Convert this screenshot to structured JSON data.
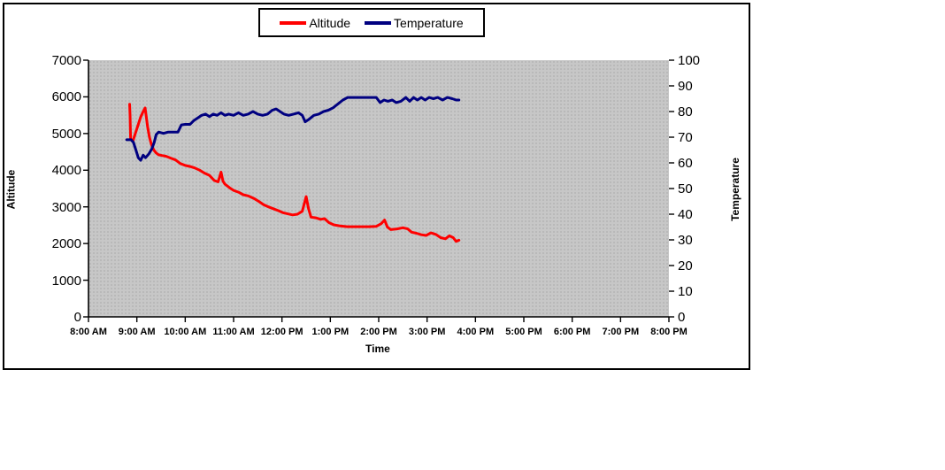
{
  "chart_data": {
    "type": "line",
    "title": "",
    "xlabel": "Time",
    "ylabel_left": "Altitude",
    "ylabel_right": "Temperature",
    "x_ticks": [
      "8:00 AM",
      "9:00 AM",
      "10:00 AM",
      "11:00 AM",
      "12:00 PM",
      "1:00 PM",
      "2:00 PM",
      "3:00 PM",
      "4:00 PM",
      "5:00 PM",
      "6:00 PM",
      "7:00 PM",
      "8:00 PM"
    ],
    "x_range_hours": [
      8,
      20
    ],
    "y_left_ticks": [
      0,
      1000,
      2000,
      3000,
      4000,
      5000,
      6000,
      7000
    ],
    "y_left_range": [
      0,
      7000
    ],
    "y_right_ticks": [
      0,
      10,
      20,
      30,
      40,
      50,
      60,
      70,
      80,
      90,
      100
    ],
    "y_right_range": [
      0,
      100
    ],
    "grid": false,
    "plot_background": "#C7C7C7",
    "axis_color": "#000000",
    "legend": {
      "position": "top-center",
      "entries": [
        {
          "label": "Altitude",
          "color": "#FF0000"
        },
        {
          "label": "Temperature",
          "color": "#000080"
        }
      ]
    },
    "series": [
      {
        "name": "Altitude",
        "axis": "left",
        "color": "#FF0000",
        "points": [
          [
            8.85,
            5800
          ],
          [
            8.86,
            5500
          ],
          [
            8.87,
            4850
          ],
          [
            8.92,
            4800
          ],
          [
            8.98,
            5050
          ],
          [
            9.03,
            5250
          ],
          [
            9.08,
            5450
          ],
          [
            9.13,
            5600
          ],
          [
            9.17,
            5700
          ],
          [
            9.19,
            5500
          ],
          [
            9.22,
            5200
          ],
          [
            9.26,
            4900
          ],
          [
            9.3,
            4700
          ],
          [
            9.35,
            4550
          ],
          [
            9.4,
            4470
          ],
          [
            9.45,
            4420
          ],
          [
            9.52,
            4400
          ],
          [
            9.6,
            4380
          ],
          [
            9.7,
            4330
          ],
          [
            9.8,
            4280
          ],
          [
            9.9,
            4180
          ],
          [
            10.0,
            4130
          ],
          [
            10.1,
            4100
          ],
          [
            10.2,
            4060
          ],
          [
            10.3,
            4000
          ],
          [
            10.4,
            3920
          ],
          [
            10.5,
            3860
          ],
          [
            10.6,
            3720
          ],
          [
            10.68,
            3680
          ],
          [
            10.74,
            3950
          ],
          [
            10.78,
            3700
          ],
          [
            10.82,
            3620
          ],
          [
            10.92,
            3520
          ],
          [
            11.0,
            3450
          ],
          [
            11.1,
            3400
          ],
          [
            11.2,
            3330
          ],
          [
            11.3,
            3300
          ],
          [
            11.42,
            3230
          ],
          [
            11.52,
            3150
          ],
          [
            11.62,
            3060
          ],
          [
            11.72,
            3000
          ],
          [
            11.82,
            2950
          ],
          [
            11.92,
            2900
          ],
          [
            12.02,
            2840
          ],
          [
            12.12,
            2810
          ],
          [
            12.22,
            2780
          ],
          [
            12.32,
            2800
          ],
          [
            12.42,
            2880
          ],
          [
            12.5,
            3280
          ],
          [
            12.55,
            2950
          ],
          [
            12.6,
            2720
          ],
          [
            12.7,
            2700
          ],
          [
            12.8,
            2660
          ],
          [
            12.88,
            2680
          ],
          [
            12.97,
            2570
          ],
          [
            13.07,
            2510
          ],
          [
            13.2,
            2480
          ],
          [
            13.35,
            2460
          ],
          [
            13.5,
            2460
          ],
          [
            13.65,
            2460
          ],
          [
            13.8,
            2460
          ],
          [
            13.95,
            2470
          ],
          [
            14.05,
            2540
          ],
          [
            14.12,
            2640
          ],
          [
            14.18,
            2450
          ],
          [
            14.25,
            2380
          ],
          [
            14.38,
            2400
          ],
          [
            14.5,
            2430
          ],
          [
            14.6,
            2400
          ],
          [
            14.68,
            2310
          ],
          [
            14.78,
            2280
          ],
          [
            14.88,
            2240
          ],
          [
            14.98,
            2220
          ],
          [
            15.08,
            2290
          ],
          [
            15.18,
            2250
          ],
          [
            15.28,
            2160
          ],
          [
            15.38,
            2130
          ],
          [
            15.46,
            2210
          ],
          [
            15.54,
            2160
          ],
          [
            15.6,
            2060
          ],
          [
            15.66,
            2090
          ]
        ]
      },
      {
        "name": "Temperature",
        "axis": "right",
        "color": "#000080",
        "points": [
          [
            8.79,
            69
          ],
          [
            8.88,
            69
          ],
          [
            8.93,
            68
          ],
          [
            8.98,
            65
          ],
          [
            9.03,
            62
          ],
          [
            9.08,
            61
          ],
          [
            9.13,
            63
          ],
          [
            9.18,
            62
          ],
          [
            9.25,
            63.5
          ],
          [
            9.31,
            65.5
          ],
          [
            9.36,
            68
          ],
          [
            9.4,
            71
          ],
          [
            9.45,
            72
          ],
          [
            9.55,
            71.5
          ],
          [
            9.65,
            72
          ],
          [
            9.75,
            72
          ],
          [
            9.85,
            72
          ],
          [
            9.92,
            74.8
          ],
          [
            10.0,
            75
          ],
          [
            10.1,
            75
          ],
          [
            10.18,
            76.5
          ],
          [
            10.26,
            77.5
          ],
          [
            10.34,
            78.5
          ],
          [
            10.42,
            79
          ],
          [
            10.5,
            78
          ],
          [
            10.58,
            79
          ],
          [
            10.66,
            78.5
          ],
          [
            10.74,
            79.5
          ],
          [
            10.82,
            78.5
          ],
          [
            10.9,
            79
          ],
          [
            11.0,
            78.5
          ],
          [
            11.1,
            79.5
          ],
          [
            11.2,
            78.5
          ],
          [
            11.3,
            79
          ],
          [
            11.4,
            80
          ],
          [
            11.5,
            79
          ],
          [
            11.6,
            78.5
          ],
          [
            11.7,
            79
          ],
          [
            11.8,
            80.5
          ],
          [
            11.88,
            81
          ],
          [
            11.96,
            80
          ],
          [
            12.04,
            79
          ],
          [
            12.14,
            78.5
          ],
          [
            12.24,
            79
          ],
          [
            12.34,
            79.5
          ],
          [
            12.42,
            78.5
          ],
          [
            12.48,
            76
          ],
          [
            12.56,
            77
          ],
          [
            12.66,
            78.5
          ],
          [
            12.76,
            79
          ],
          [
            12.86,
            80
          ],
          [
            12.96,
            80.5
          ],
          [
            13.06,
            81.5
          ],
          [
            13.16,
            83
          ],
          [
            13.26,
            84.5
          ],
          [
            13.36,
            85.5
          ],
          [
            13.5,
            85.5
          ],
          [
            13.65,
            85.5
          ],
          [
            13.8,
            85.5
          ],
          [
            13.95,
            85.5
          ],
          [
            14.03,
            83.5
          ],
          [
            14.11,
            84.5
          ],
          [
            14.19,
            84
          ],
          [
            14.28,
            84.5
          ],
          [
            14.36,
            83.5
          ],
          [
            14.46,
            84
          ],
          [
            14.56,
            85.5
          ],
          [
            14.64,
            84
          ],
          [
            14.72,
            85.5
          ],
          [
            14.8,
            84.5
          ],
          [
            14.88,
            85.5
          ],
          [
            14.96,
            84.5
          ],
          [
            15.04,
            85.5
          ],
          [
            15.13,
            85
          ],
          [
            15.22,
            85.5
          ],
          [
            15.32,
            84.5
          ],
          [
            15.42,
            85.5
          ],
          [
            15.52,
            85
          ],
          [
            15.6,
            84.5
          ],
          [
            15.66,
            84.5
          ]
        ]
      }
    ]
  }
}
